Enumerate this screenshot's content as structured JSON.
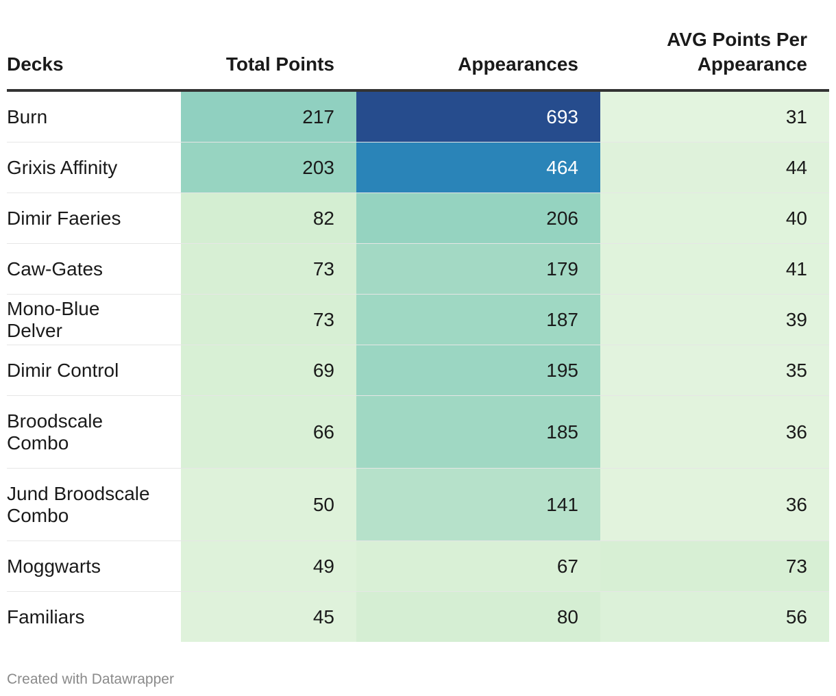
{
  "chart_data": {
    "type": "table",
    "title": "",
    "columns": [
      "Decks",
      "Total Points",
      "Appearances",
      "AVG Points Per Appearance"
    ],
    "rows": [
      {
        "deck": "Burn",
        "total_points": 217,
        "appearances": 693,
        "avg_points": 31
      },
      {
        "deck": "Grixis Affinity",
        "total_points": 203,
        "appearances": 464,
        "avg_points": 44
      },
      {
        "deck": "Dimir Faeries",
        "total_points": 82,
        "appearances": 206,
        "avg_points": 40
      },
      {
        "deck": "Caw-Gates",
        "total_points": 73,
        "appearances": 179,
        "avg_points": 41
      },
      {
        "deck": "Mono-Blue Delver",
        "total_points": 73,
        "appearances": 187,
        "avg_points": 39
      },
      {
        "deck": "Dimir Control",
        "total_points": 69,
        "appearances": 195,
        "avg_points": 35
      },
      {
        "deck": "Broodscale Combo",
        "total_points": 66,
        "appearances": 185,
        "avg_points": 36
      },
      {
        "deck": "Jund Broodscale Combo",
        "total_points": 50,
        "appearances": 141,
        "avg_points": 36
      },
      {
        "deck": "Moggwarts",
        "total_points": 49,
        "appearances": 67,
        "avg_points": 73
      },
      {
        "deck": "Familiars",
        "total_points": 45,
        "appearances": 80,
        "avg_points": 56
      }
    ],
    "heatmap_colors": {
      "low": "#ecf7e6",
      "mid_low": "#d4eed2",
      "mid": "#94d3c0",
      "high": "#2b8cbe",
      "max": "#264c8d"
    }
  },
  "header": {
    "deck_label": "Decks",
    "total_label": "Total Points",
    "appearances_label": "Appearances",
    "avg_label_line1": "AVG Points Per",
    "avg_label_line2": "Appearance"
  },
  "footer": {
    "credit": "Created with Datawrapper"
  }
}
